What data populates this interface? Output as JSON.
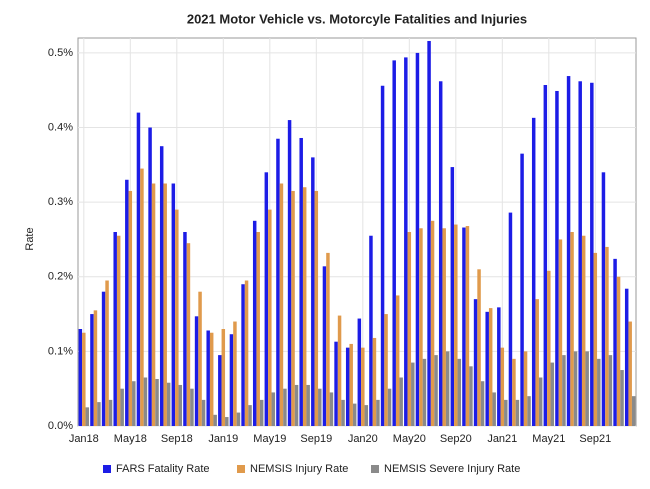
{
  "chart_data": {
    "type": "bar",
    "title": "2021 Motor Vehicle vs. Motorcyle Fatalities and Injuries",
    "y_label": "Rate",
    "categories": [
      "Jan18",
      null,
      null,
      null,
      "May18",
      null,
      null,
      null,
      "Sep18",
      null,
      null,
      null,
      "Jan19",
      null,
      null,
      null,
      "May19",
      null,
      null,
      null,
      "Sep19",
      null,
      null,
      null,
      "Jan20",
      null,
      null,
      null,
      "May20",
      null,
      null,
      null,
      "Sep20",
      null,
      null,
      null,
      "Jan21",
      null,
      null,
      null,
      "May21",
      null,
      null,
      null,
      "Sep21",
      null,
      null,
      null
    ],
    "series": [
      {
        "name": "FARS Fatality Rate",
        "color": "#1c1ce6",
        "values": [
          0.13,
          0.15,
          0.18,
          0.26,
          0.33,
          0.42,
          0.4,
          0.375,
          0.325,
          0.26,
          0.147,
          0.128,
          0.095,
          0.123,
          0.19,
          0.275,
          0.34,
          0.385,
          0.41,
          0.386,
          0.36,
          0.214,
          0.113,
          0.105,
          0.144,
          0.255,
          0.456,
          0.49,
          0.494,
          0.5,
          0.516,
          0.462,
          0.347,
          0.266,
          0.17,
          0.153,
          0.159,
          0.286,
          0.365,
          0.413,
          0.457,
          0.449,
          0.469,
          0.462,
          0.46,
          0.34,
          0.224,
          0.184
        ]
      },
      {
        "name": "NEMSIS Injury Rate",
        "color": "#e09a4c",
        "values": [
          0.125,
          0.155,
          0.195,
          0.255,
          0.315,
          0.345,
          0.325,
          0.325,
          0.29,
          0.245,
          0.18,
          0.125,
          0.13,
          0.14,
          0.195,
          0.26,
          0.29,
          0.325,
          0.315,
          0.32,
          0.315,
          0.232,
          0.148,
          0.11,
          0.105,
          0.118,
          0.15,
          0.175,
          0.26,
          0.265,
          0.275,
          0.265,
          0.27,
          0.268,
          0.21,
          0.158,
          0.105,
          0.09,
          0.1,
          0.17,
          0.208,
          0.25,
          0.26,
          0.255,
          0.232,
          0.24,
          0.2,
          0.14
        ]
      },
      {
        "name": "NEMSIS Severe Injury Rate",
        "color": "#8a8a8a",
        "values": [
          0.025,
          0.032,
          0.035,
          0.05,
          0.06,
          0.065,
          0.063,
          0.058,
          0.055,
          0.05,
          0.035,
          0.015,
          0.012,
          0.018,
          0.028,
          0.035,
          0.045,
          0.05,
          0.055,
          0.055,
          0.05,
          0.045,
          0.035,
          0.03,
          0.028,
          0.035,
          0.05,
          0.065,
          0.085,
          0.09,
          0.095,
          0.1,
          0.09,
          0.08,
          0.06,
          0.045,
          0.035,
          0.035,
          0.04,
          0.065,
          0.085,
          0.095,
          0.1,
          0.1,
          0.09,
          0.095,
          0.075,
          0.04
        ]
      }
    ],
    "ylim": [
      0,
      0.52
    ],
    "yticks": [
      {
        "value": 0,
        "label": "0.0%"
      },
      {
        "value": 0.1,
        "label": "0.1%"
      },
      {
        "value": 0.2,
        "label": "0.2%"
      },
      {
        "value": 0.3,
        "label": "0.3%"
      },
      {
        "value": 0.4,
        "label": "0.4%"
      },
      {
        "value": 0.5,
        "label": "0.5%"
      }
    ],
    "grid": true,
    "legend": "bottom"
  }
}
